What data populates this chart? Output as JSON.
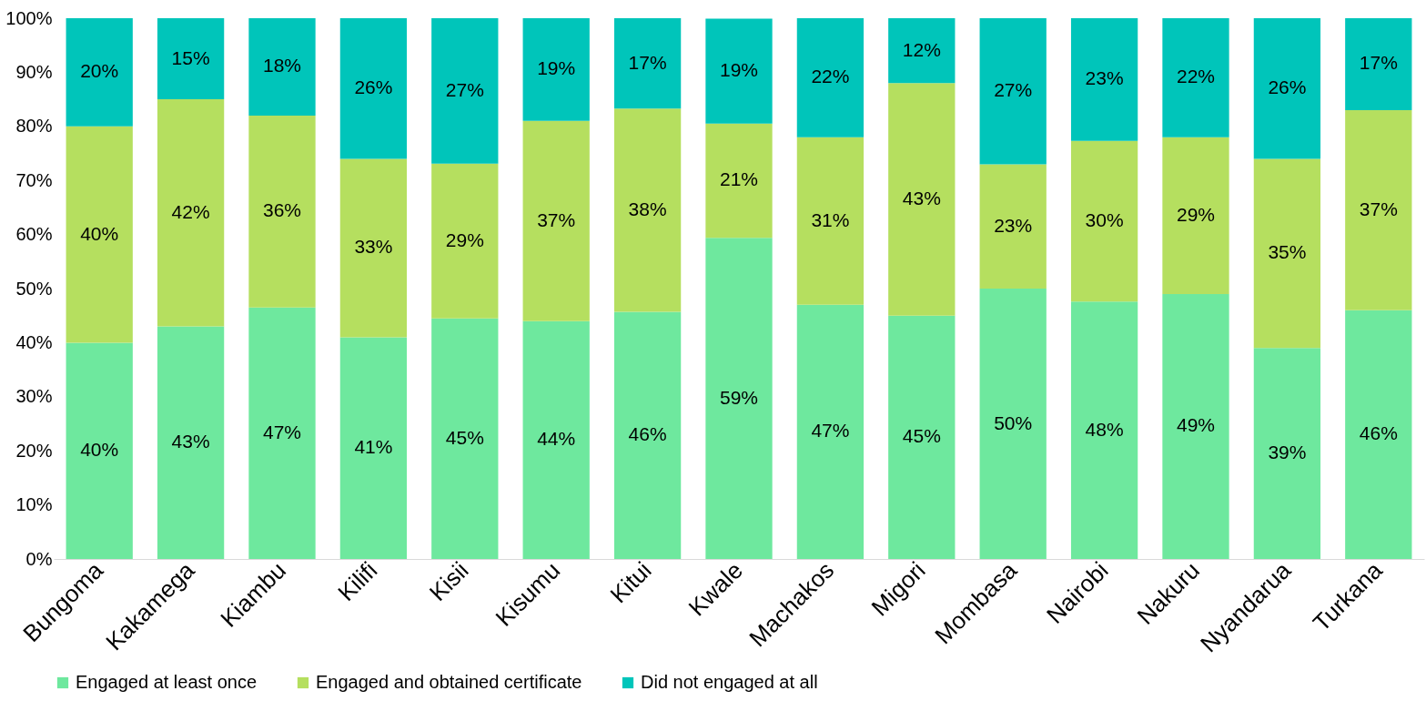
{
  "chart_data": {
    "type": "bar",
    "stacked": true,
    "categories": [
      "Bungoma",
      "Kakamega",
      "Kiambu",
      "Kilifi",
      "Kisii",
      "Kisumu",
      "Kitui",
      "Kwale",
      "Machakos",
      "Migori",
      "Mombasa",
      "Nairobi",
      "Nakuru",
      "Nyandarua",
      "Turkana"
    ],
    "series": [
      {
        "name": "Engaged at least once",
        "color": "#6ee89e",
        "values": [
          40,
          43,
          46.5,
          41,
          44.5,
          44,
          45.7,
          59.4,
          47,
          45,
          50,
          47.6,
          49,
          39,
          46
        ],
        "value_labels": [
          "40%",
          "43%",
          "47%",
          "41%",
          "45%",
          "44%",
          "46%",
          "59%",
          "47%",
          "45%",
          "50%",
          "48%",
          "49%",
          "39%",
          "46%"
        ]
      },
      {
        "name": "Engaged and obtained certificate",
        "color": "#b5df5f",
        "values": [
          40,
          42,
          35.5,
          33,
          28.6,
          37,
          37.6,
          21.1,
          31,
          43,
          23,
          29.7,
          29,
          35,
          37
        ],
        "value_labels": [
          "40%",
          "42%",
          "36%",
          "33%",
          "29%",
          "37%",
          "38%",
          "21%",
          "31%",
          "43%",
          "23%",
          "30%",
          "29%",
          "35%",
          "37%"
        ]
      },
      {
        "name": "Did not engaged at all",
        "color": "#00c5ba",
        "values": [
          20,
          15,
          18,
          26,
          26.9,
          19,
          16.7,
          19.4,
          22,
          12,
          27,
          22.7,
          22,
          26,
          17
        ],
        "value_labels": [
          "20%",
          "15%",
          "18%",
          "26%",
          "27%",
          "19%",
          "17%",
          "19%",
          "22%",
          "12%",
          "27%",
          "23%",
          "22%",
          "26%",
          "17%"
        ]
      }
    ],
    "ylim": [
      0,
      100
    ],
    "yticks": [
      {
        "value": 0,
        "label": "0%"
      },
      {
        "value": 10,
        "label": "10%"
      },
      {
        "value": 20,
        "label": "20%"
      },
      {
        "value": 30,
        "label": "30%"
      },
      {
        "value": 40,
        "label": "40%"
      },
      {
        "value": 50,
        "label": "50%"
      },
      {
        "value": 60,
        "label": "60%"
      },
      {
        "value": 70,
        "label": "70%"
      },
      {
        "value": 80,
        "label": "80%"
      },
      {
        "value": 90,
        "label": "90%"
      },
      {
        "value": 100,
        "label": "100%"
      }
    ],
    "grid": false,
    "legend": "bottom"
  }
}
